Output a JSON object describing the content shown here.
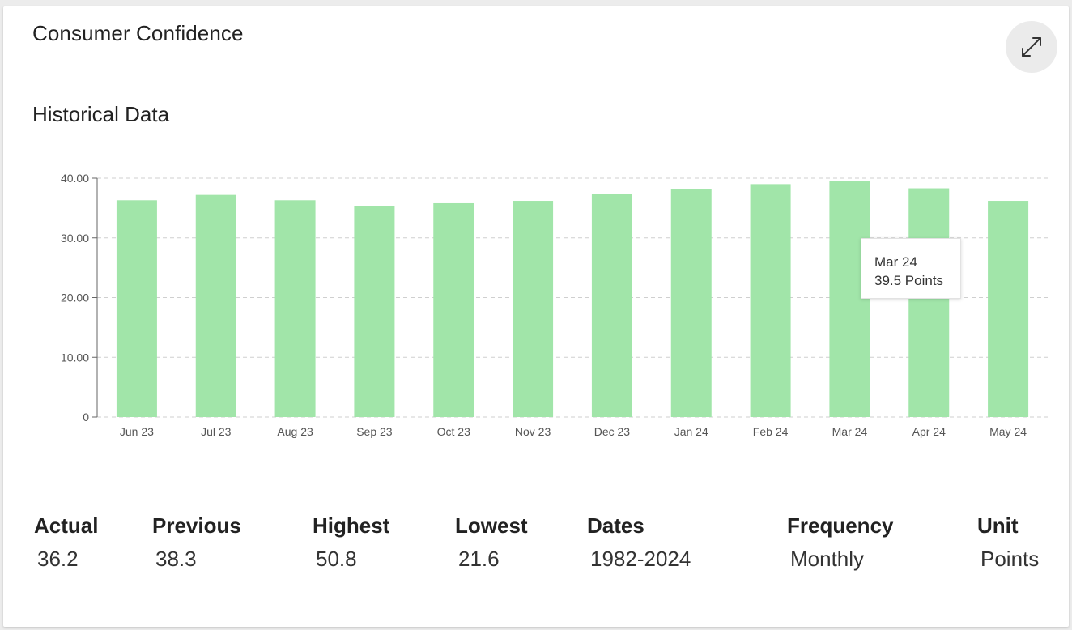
{
  "card": {
    "title": "Consumer Confidence",
    "section_title": "Historical Data",
    "expand_icon": "expand-arrows-icon"
  },
  "colors": {
    "bar": "#a1e5a9",
    "grid": "#cfcfcf",
    "axis": "#666666",
    "expand_bg": "#ebebeb"
  },
  "chart_data": {
    "type": "bar",
    "categories": [
      "Jun 23",
      "Jul 23",
      "Aug 23",
      "Sep 23",
      "Oct 23",
      "Nov 23",
      "Dec 23",
      "Jan 24",
      "Feb 24",
      "Mar 24",
      "Apr 24",
      "May 24"
    ],
    "values": [
      36.3,
      37.2,
      36.3,
      35.3,
      35.8,
      36.2,
      37.3,
      38.1,
      39.0,
      39.5,
      38.3,
      36.2
    ],
    "ylim": [
      0,
      40
    ],
    "yticks": [
      0,
      10,
      20,
      30,
      40
    ],
    "ytick_labels": [
      "0",
      "10.00",
      "20.00",
      "30.00",
      "40.00"
    ],
    "grid": true,
    "grid_style": "dashed",
    "legend": false
  },
  "tooltip": {
    "category": "Mar 24",
    "value_text": "39.5 Points"
  },
  "stats": [
    {
      "label": "Actual",
      "value": "36.2"
    },
    {
      "label": "Previous",
      "value": "38.3"
    },
    {
      "label": "Highest",
      "value": "50.8"
    },
    {
      "label": "Lowest",
      "value": "21.6"
    },
    {
      "label": "Dates",
      "value": "1982-2024"
    },
    {
      "label": "Frequency",
      "value": "Monthly"
    },
    {
      "label": "Unit",
      "value": "Points"
    }
  ]
}
